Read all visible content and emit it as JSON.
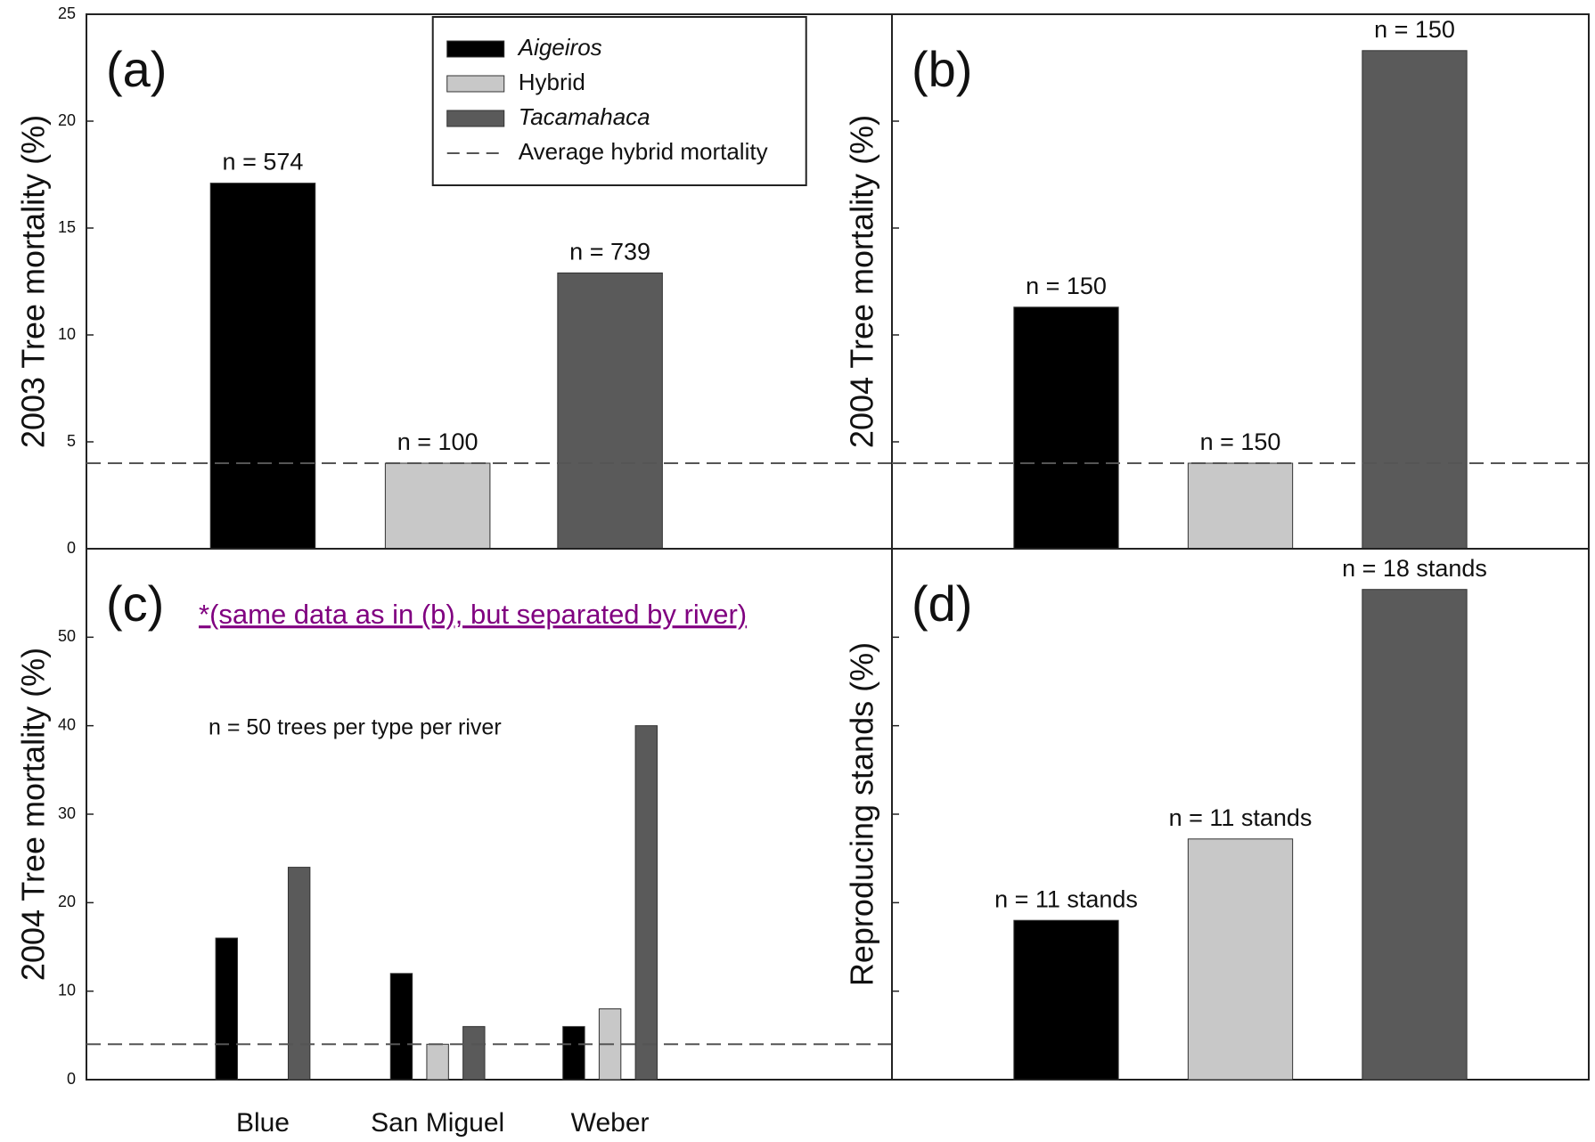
{
  "chart_data": [
    {
      "type": "bar",
      "label": "(a)",
      "y_label": "2003 Tree mortality (%)",
      "categories": [
        null
      ],
      "series": [
        {
          "name": "Aigeiros",
          "italic": true,
          "color": "#000000",
          "values": [
            17.1
          ],
          "n_labels": [
            "n = 574"
          ]
        },
        {
          "name": "Hybrid",
          "italic": false,
          "color": "#c8c8c8",
          "values": [
            4
          ],
          "n_labels": [
            "n = 100"
          ]
        },
        {
          "name": "Tacamahaca",
          "italic": true,
          "color": "#5a5a5a",
          "values": [
            12.9
          ],
          "n_labels": [
            "n = 739"
          ]
        }
      ],
      "ylim": [
        0,
        25
      ],
      "yticks": [
        0,
        5,
        10,
        15,
        20,
        25
      ],
      "tick_labels": true,
      "legend": "upper center",
      "reference_line": {
        "name": "Average hybrid mortality",
        "value": 4,
        "style": "dashed"
      }
    },
    {
      "type": "bar",
      "label": "(b)",
      "y_label": "2004 Tree mortality (%)",
      "categories": [
        null
      ],
      "series": [
        {
          "color": "#000000",
          "values": [
            11.3
          ],
          "n_labels": [
            "n = 150"
          ]
        },
        {
          "color": "#c8c8c8",
          "values": [
            4
          ],
          "n_labels": [
            "n = 150"
          ]
        },
        {
          "color": "#5a5a5a",
          "values": [
            23.3
          ],
          "n_labels": [
            "n = 150"
          ]
        }
      ],
      "ylim": [
        0,
        25
      ],
      "yticks": [
        0,
        5,
        10,
        15,
        20,
        25
      ],
      "tick_labels": false,
      "reference_line": {
        "value": 4,
        "style": "dashed"
      }
    },
    {
      "type": "bar",
      "label": "(c)",
      "subtitle": "*(same data as in (b), but separated by river)",
      "annotation": "n = 50 trees per type per river",
      "y_label": "2004 Tree mortality (%)",
      "categories": [
        "Blue",
        "San Miguel",
        "Weber"
      ],
      "series": [
        {
          "color": "#000000",
          "values": [
            16,
            12,
            6
          ]
        },
        {
          "color": "#c8c8c8",
          "values": [
            0,
            4,
            8
          ]
        },
        {
          "color": "#5a5a5a",
          "values": [
            24,
            6,
            40
          ]
        }
      ],
      "ylim": [
        0,
        60
      ],
      "yticks": [
        0,
        10,
        20,
        30,
        40,
        50
      ],
      "tick_labels": true,
      "reference_line": {
        "value": 4,
        "style": "dashed"
      }
    },
    {
      "type": "bar",
      "label": "(d)",
      "y_label": "Reproducing stands (%)",
      "categories": [
        null
      ],
      "series": [
        {
          "color": "#000000",
          "values": [
            18
          ],
          "n_labels": [
            "n = 11 stands"
          ]
        },
        {
          "color": "#c8c8c8",
          "values": [
            27.2
          ],
          "n_labels": [
            "n = 11 stands"
          ]
        },
        {
          "color": "#5a5a5a",
          "values": [
            55.4
          ],
          "n_labels": [
            "n = 18 stands"
          ]
        }
      ],
      "ylim": [
        0,
        60
      ],
      "yticks": [
        0,
        10,
        20,
        30,
        40,
        50
      ],
      "tick_labels": false
    }
  ]
}
